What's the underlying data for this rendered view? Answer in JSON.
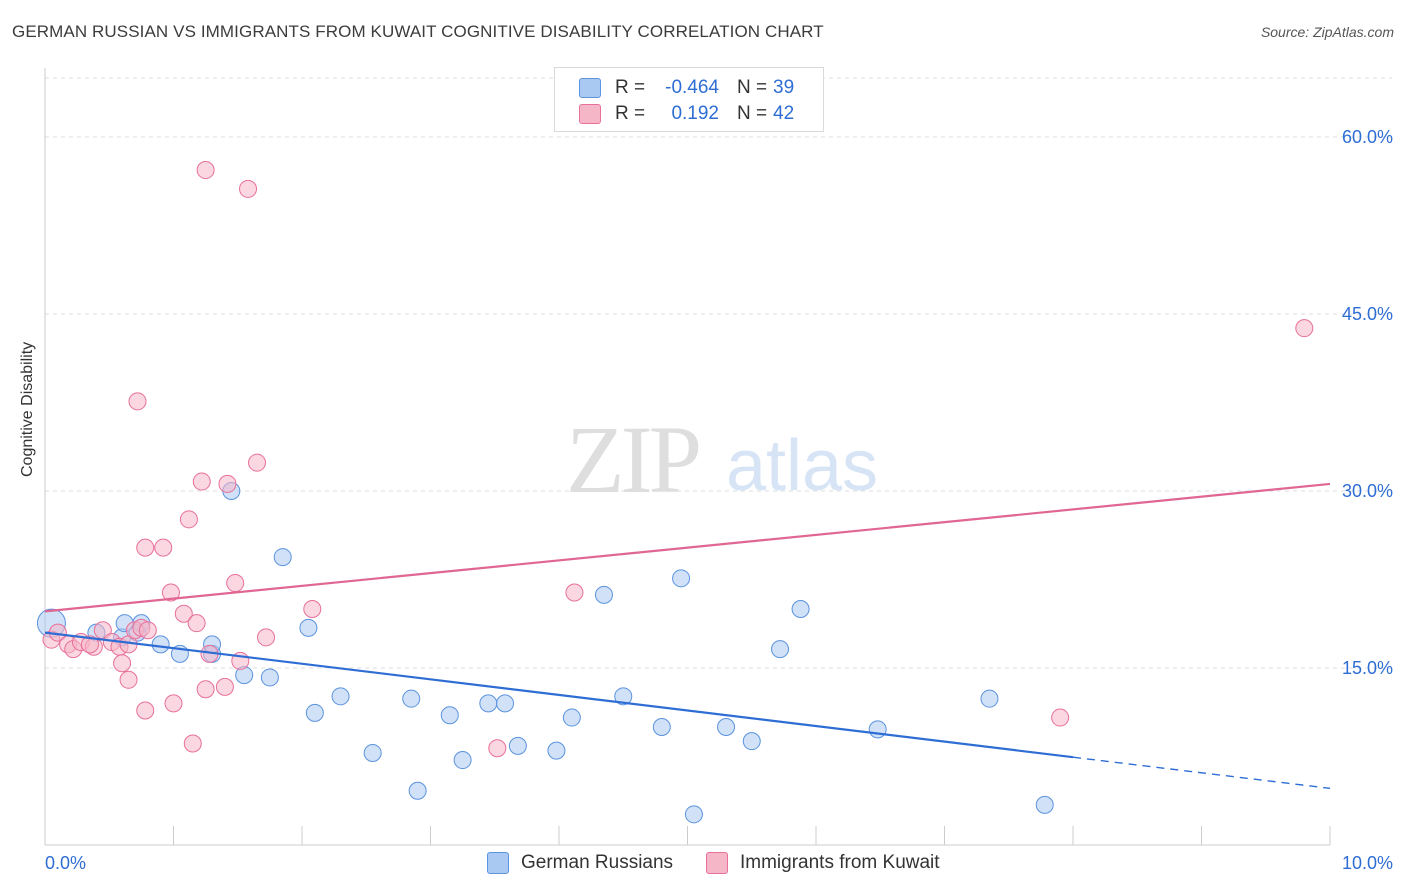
{
  "title": "GERMAN RUSSIAN VS IMMIGRANTS FROM KUWAIT COGNITIVE DISABILITY CORRELATION CHART",
  "source": "Source: ZipAtlas.com",
  "watermark": {
    "zip": "ZIP",
    "atlas": "atlas"
  },
  "legend_top": {
    "rows": [
      {
        "r_label": "R =",
        "r_value": "-0.464",
        "n_label": "N =",
        "n_value": "39",
        "color": "#a9c8f2"
      },
      {
        "r_label": "R =",
        "r_value": "0.192",
        "n_label": "N =",
        "n_value": "42",
        "color": "#f5b6c8"
      }
    ]
  },
  "legend_bottom": {
    "items": [
      {
        "label": "German Russians",
        "color": "#a9c8f2"
      },
      {
        "label": "Immigrants from Kuwait",
        "color": "#f5b6c8"
      }
    ]
  },
  "chart_data": {
    "type": "scatter",
    "title": "GERMAN RUSSIAN VS IMMIGRANTS FROM KUWAIT COGNITIVE DISABILITY CORRELATION CHART",
    "xlabel": "",
    "ylabel": "Cognitive Disability",
    "xlim": [
      0,
      10
    ],
    "ylim": [
      0,
      65
    ],
    "x_tick_labels": {
      "0.0%": 0,
      "10.0%": 10
    },
    "y_ticks": [
      15,
      30,
      45,
      60
    ],
    "y_tick_labels": [
      "15.0%",
      "30.0%",
      "45.0%",
      "60.0%"
    ],
    "grid": "horizontal dashed",
    "legend_placement": "top-center and bottom",
    "series": [
      {
        "name": "German Russians",
        "color": "#5b93de",
        "fill": "#a9c8f2",
        "points": [
          [
            0.05,
            18.8
          ],
          [
            0.4,
            18.0
          ],
          [
            0.6,
            17.6
          ],
          [
            0.72,
            18.0
          ],
          [
            0.62,
            18.8
          ],
          [
            0.75,
            18.8
          ],
          [
            0.9,
            17.0
          ],
          [
            1.05,
            16.2
          ],
          [
            1.3,
            16.2
          ],
          [
            1.3,
            17.0
          ],
          [
            1.45,
            30.0
          ],
          [
            1.55,
            14.4
          ],
          [
            1.75,
            14.2
          ],
          [
            1.85,
            24.4
          ],
          [
            2.05,
            18.4
          ],
          [
            2.1,
            11.2
          ],
          [
            2.3,
            12.6
          ],
          [
            2.55,
            7.8
          ],
          [
            2.85,
            12.4
          ],
          [
            2.9,
            4.6
          ],
          [
            3.15,
            11.0
          ],
          [
            3.25,
            7.2
          ],
          [
            3.45,
            12.0
          ],
          [
            3.58,
            12.0
          ],
          [
            3.68,
            8.4
          ],
          [
            3.98,
            8.0
          ],
          [
            4.1,
            10.8
          ],
          [
            4.35,
            21.2
          ],
          [
            4.5,
            12.6
          ],
          [
            4.8,
            10.0
          ],
          [
            4.95,
            22.6
          ],
          [
            5.05,
            2.6
          ],
          [
            5.3,
            10.0
          ],
          [
            5.5,
            8.8
          ],
          [
            5.72,
            16.6
          ],
          [
            5.88,
            20.0
          ],
          [
            6.48,
            9.8
          ],
          [
            7.35,
            12.4
          ],
          [
            7.78,
            3.4
          ]
        ],
        "trend": {
          "x": [
            0,
            10
          ],
          "y": [
            18.0,
            4.8
          ],
          "solid_until": 8.0
        }
      },
      {
        "name": "Immigrants from Kuwait",
        "color": "#e8709a",
        "fill": "#f5b6c8",
        "points": [
          [
            0.05,
            17.4
          ],
          [
            0.1,
            18.0
          ],
          [
            0.18,
            17.0
          ],
          [
            0.22,
            16.6
          ],
          [
            0.28,
            17.2
          ],
          [
            0.38,
            16.8
          ],
          [
            0.45,
            18.2
          ],
          [
            0.52,
            17.2
          ],
          [
            0.58,
            16.8
          ],
          [
            0.65,
            17.0
          ],
          [
            0.7,
            18.2
          ],
          [
            0.75,
            18.4
          ],
          [
            0.8,
            18.2
          ],
          [
            0.6,
            15.4
          ],
          [
            0.65,
            14.0
          ],
          [
            0.78,
            11.4
          ],
          [
            0.72,
            37.6
          ],
          [
            0.78,
            25.2
          ],
          [
            0.92,
            25.2
          ],
          [
            0.98,
            21.4
          ],
          [
            1.0,
            12.0
          ],
          [
            1.08,
            19.6
          ],
          [
            1.12,
            27.6
          ],
          [
            1.15,
            8.6
          ],
          [
            1.18,
            18.8
          ],
          [
            1.22,
            30.8
          ],
          [
            1.25,
            13.2
          ],
          [
            1.28,
            16.2
          ],
          [
            1.4,
            13.4
          ],
          [
            1.42,
            30.6
          ],
          [
            1.48,
            22.2
          ],
          [
            1.52,
            15.6
          ],
          [
            1.65,
            32.4
          ],
          [
            1.72,
            17.6
          ],
          [
            1.58,
            55.6
          ],
          [
            1.25,
            57.2
          ],
          [
            2.08,
            20.0
          ],
          [
            3.52,
            8.2
          ],
          [
            4.12,
            21.4
          ],
          [
            7.9,
            10.8
          ],
          [
            9.8,
            43.8
          ],
          [
            0.35,
            17.0
          ]
        ],
        "trend": {
          "x": [
            0,
            10
          ],
          "y": [
            19.8,
            30.6
          ]
        }
      }
    ]
  }
}
